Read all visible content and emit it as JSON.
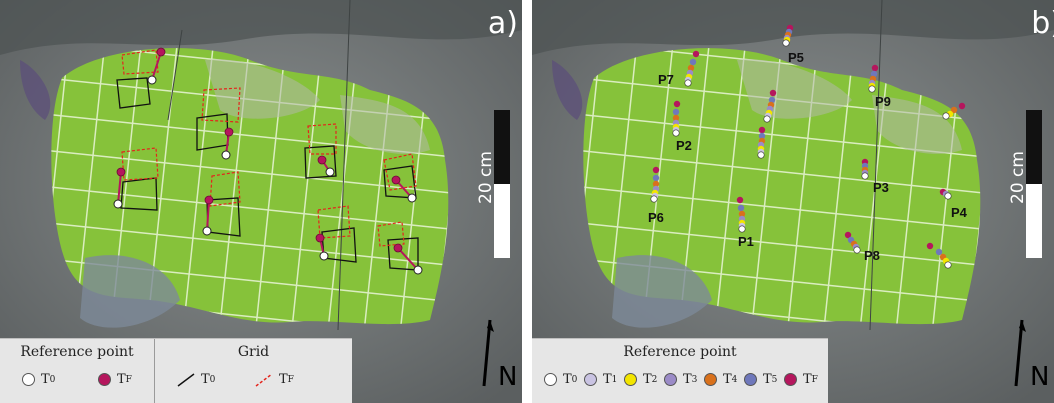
{
  "panel_a": {
    "letter": "a)",
    "scale": "20 cm",
    "north": "N",
    "legend": {
      "ref_title": "Reference point",
      "grid_title": "Grid",
      "t0": "T",
      "t0_sub": "0",
      "tf": "T",
      "tf_sub": "F"
    }
  },
  "panel_b": {
    "letter": "b)",
    "scale": "20 cm",
    "north": "N",
    "legend": {
      "title": "Reference point",
      "items": [
        {
          "t": "T",
          "sub": "0",
          "color": "#ffffff"
        },
        {
          "t": "T",
          "sub": "1",
          "color": "#c9c3e2"
        },
        {
          "t": "T",
          "sub": "2",
          "color": "#f3e500"
        },
        {
          "t": "T",
          "sub": "3",
          "color": "#9b8bc7"
        },
        {
          "t": "T",
          "sub": "4",
          "color": "#d9711c"
        },
        {
          "t": "T",
          "sub": "5",
          "color": "#6f78bb"
        },
        {
          "t": "T",
          "sub": "F",
          "color": "#b5165d"
        }
      ]
    },
    "points": [
      {
        "label": "P1"
      },
      {
        "label": "P2"
      },
      {
        "label": "P3"
      },
      {
        "label": "P4"
      },
      {
        "label": "P5"
      },
      {
        "label": "P6"
      },
      {
        "label": "P7"
      },
      {
        "label": "P8"
      },
      {
        "label": "P9"
      }
    ]
  },
  "colors": {
    "rock": "#6f7474",
    "moss": "#86c23a",
    "grid_tf": "#e4241c",
    "point_tf": "#b5165d"
  }
}
